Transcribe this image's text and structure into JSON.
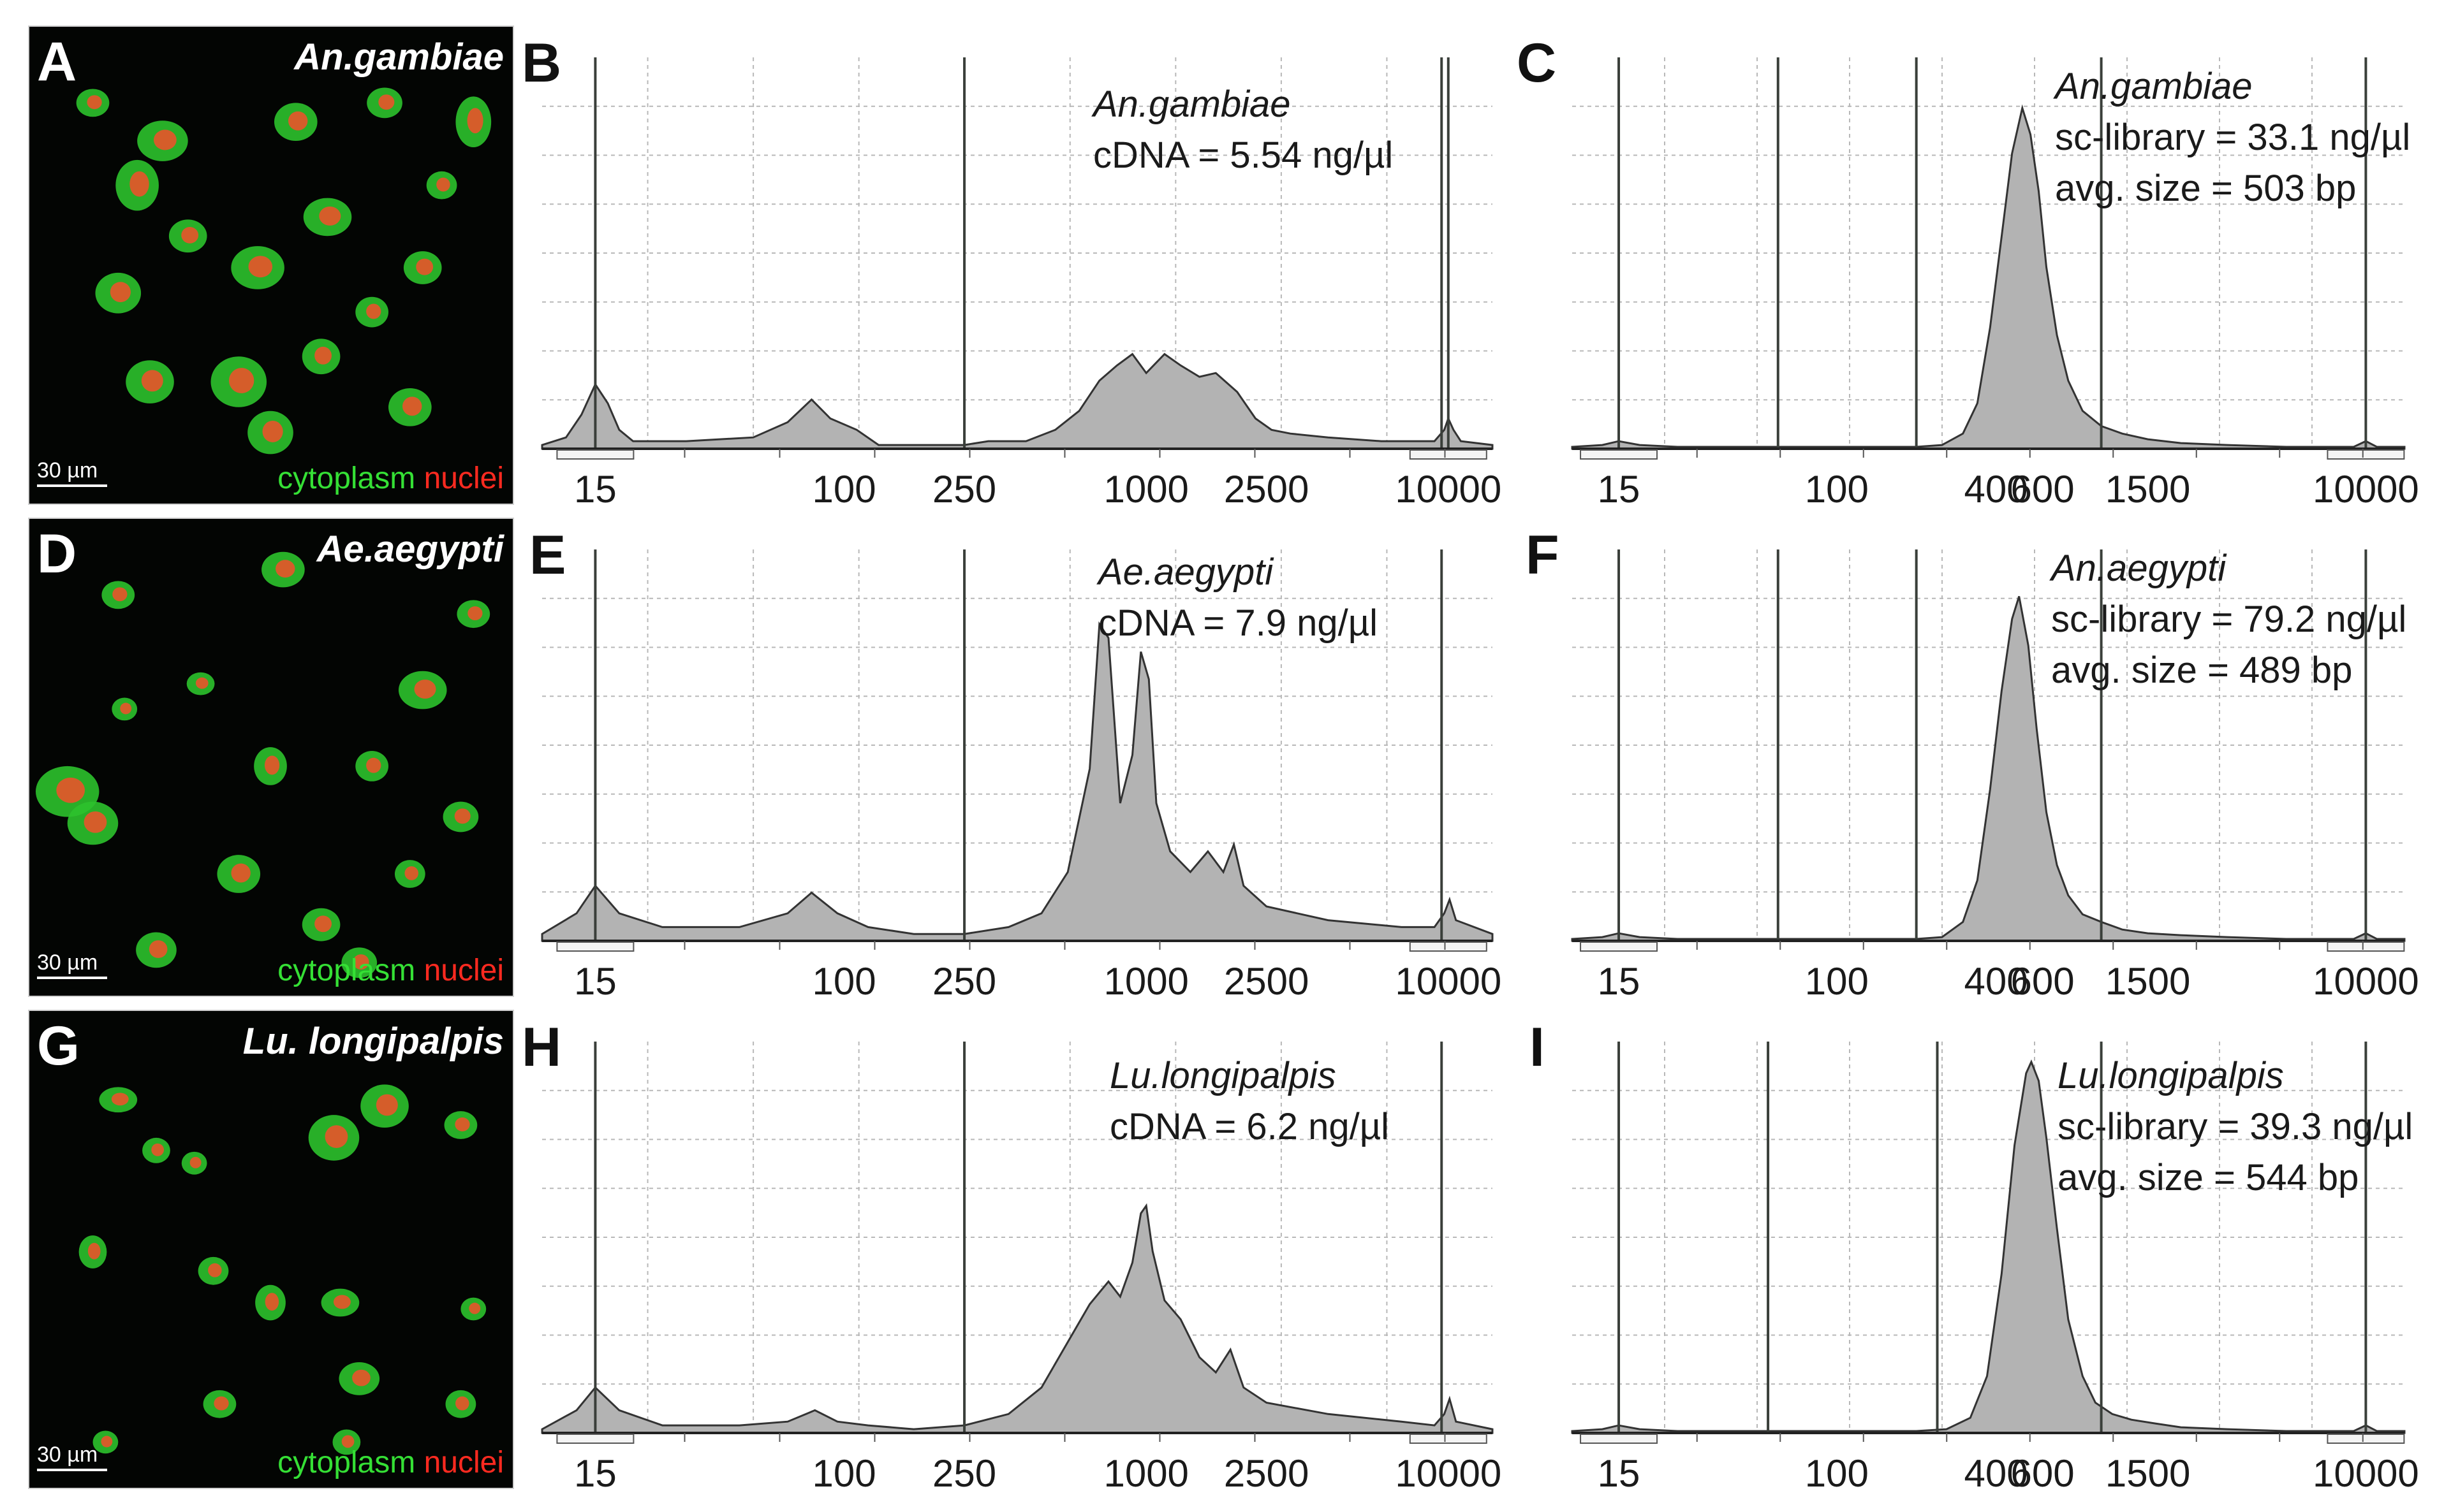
{
  "micro": [
    {
      "letter": "A",
      "species": "An.gambiae",
      "scale": "30 µm",
      "legend_cyto": "cytoplasm",
      "legend_nuc": "nuclei"
    },
    {
      "letter": "D",
      "species": "Ae.aegypti",
      "scale": "30 µm",
      "legend_cyto": "cytoplasm",
      "legend_nuc": "nuclei"
    },
    {
      "letter": "G",
      "species": "Lu. longipalpis",
      "scale": "30 µm",
      "legend_cyto": "cytoplasm",
      "legend_nuc": "nuclei"
    }
  ],
  "chart_data": [
    {
      "type": "area",
      "panel": "B",
      "title": "An.gambiae",
      "measure": "cDNA = 5.54 ng/µl",
      "xscale": "log",
      "xlim": [
        10,
        14000
      ],
      "x_ticks": [
        15,
        100,
        250,
        1000,
        2500,
        10000
      ],
      "markers": [
        15,
        250,
        9500,
        10000
      ],
      "x": [
        10,
        12,
        13.5,
        15,
        16.5,
        18,
        20,
        30,
        50,
        65,
        78,
        90,
        110,
        130,
        160,
        200,
        250,
        300,
        400,
        500,
        600,
        700,
        800,
        900,
        1000,
        1150,
        1300,
        1500,
        1700,
        2000,
        2300,
        2600,
        3000,
        4000,
        6000,
        8000,
        9000,
        9700,
        10000,
        10400,
        11000,
        14000
      ],
      "y": [
        0.01,
        0.03,
        0.09,
        0.17,
        0.12,
        0.05,
        0.02,
        0.02,
        0.03,
        0.07,
        0.13,
        0.08,
        0.05,
        0.01,
        0.01,
        0.01,
        0.01,
        0.02,
        0.02,
        0.05,
        0.1,
        0.18,
        0.22,
        0.25,
        0.2,
        0.25,
        0.22,
        0.19,
        0.2,
        0.15,
        0.08,
        0.05,
        0.04,
        0.03,
        0.02,
        0.02,
        0.02,
        0.05,
        0.08,
        0.05,
        0.02,
        0.01
      ],
      "ylim": [
        0,
        1
      ],
      "grid": true
    },
    {
      "type": "area",
      "panel": "C",
      "title": "An.gambiae",
      "measure": "sc-library =  33.1 ng/µl",
      "avg_size": "avg. size = 503 bp",
      "xscale": "log",
      "xlim": [
        10,
        14000
      ],
      "x_ticks": [
        15,
        100,
        400,
        600,
        1500,
        10000
      ],
      "markers": [
        15,
        60,
        200,
        1000,
        10000
      ],
      "x": [
        10,
        13,
        15,
        18,
        25,
        100,
        200,
        250,
        300,
        340,
        380,
        420,
        460,
        503,
        540,
        580,
        620,
        680,
        750,
        850,
        1000,
        1200,
        1500,
        2000,
        3000,
        5000,
        9000,
        10000,
        11000,
        14000
      ],
      "y": [
        0.005,
        0.01,
        0.02,
        0.01,
        0.005,
        0.005,
        0.005,
        0.01,
        0.04,
        0.12,
        0.32,
        0.56,
        0.78,
        0.9,
        0.83,
        0.68,
        0.48,
        0.3,
        0.18,
        0.1,
        0.06,
        0.04,
        0.025,
        0.015,
        0.01,
        0.005,
        0.005,
        0.02,
        0.005,
        0.005
      ],
      "ylim": [
        0,
        1
      ],
      "grid": true
    },
    {
      "type": "area",
      "panel": "E",
      "title": "Ae.aegypti",
      "measure": "cDNA = 7.9 ng/µl",
      "xscale": "log",
      "xlim": [
        10,
        14000
      ],
      "x_ticks": [
        15,
        100,
        250,
        1000,
        2500,
        10000
      ],
      "markers": [
        15,
        250,
        9500
      ],
      "x": [
        10,
        13,
        15,
        18,
        25,
        45,
        65,
        78,
        95,
        120,
        170,
        250,
        350,
        450,
        550,
        650,
        700,
        750,
        820,
        900,
        960,
        1020,
        1080,
        1200,
        1400,
        1600,
        1800,
        1950,
        2100,
        2500,
        4000,
        7000,
        9000,
        9700,
        10100,
        10600,
        14000
      ],
      "y": [
        0.01,
        0.04,
        0.08,
        0.04,
        0.02,
        0.02,
        0.04,
        0.07,
        0.04,
        0.02,
        0.01,
        0.01,
        0.02,
        0.04,
        0.1,
        0.25,
        0.46,
        0.44,
        0.2,
        0.27,
        0.42,
        0.38,
        0.2,
        0.13,
        0.1,
        0.13,
        0.1,
        0.14,
        0.08,
        0.05,
        0.03,
        0.02,
        0.02,
        0.04,
        0.06,
        0.03,
        0.01
      ],
      "ylim": [
        0,
        0.55
      ],
      "grid": true
    },
    {
      "type": "area",
      "panel": "F",
      "title": "An.aegypti",
      "measure": "sc-library =  79.2 ng/µl",
      "avg_size": "avg. size = 489 bp",
      "xscale": "log",
      "xlim": [
        10,
        14000
      ],
      "x_ticks": [
        15,
        100,
        400,
        600,
        1500,
        10000
      ],
      "markers": [
        15,
        60,
        200,
        1000,
        10000
      ],
      "x": [
        10,
        13,
        15,
        18,
        25,
        100,
        200,
        250,
        300,
        340,
        380,
        420,
        460,
        489,
        530,
        570,
        620,
        680,
        750,
        850,
        1000,
        1200,
        1500,
        2000,
        3000,
        5000,
        9000,
        10000,
        11000,
        14000
      ],
      "y": [
        0.005,
        0.01,
        0.02,
        0.01,
        0.005,
        0.005,
        0.005,
        0.01,
        0.05,
        0.16,
        0.4,
        0.66,
        0.85,
        0.91,
        0.78,
        0.56,
        0.34,
        0.2,
        0.12,
        0.07,
        0.05,
        0.03,
        0.02,
        0.015,
        0.01,
        0.005,
        0.005,
        0.02,
        0.005,
        0.005
      ],
      "ylim": [
        0,
        1
      ],
      "grid": true
    },
    {
      "type": "area",
      "panel": "H",
      "title": "Lu.longipalpis",
      "measure": "cDNA = 6.2 ng/µl",
      "xscale": "log",
      "xlim": [
        10,
        14000
      ],
      "x_ticks": [
        15,
        100,
        250,
        1000,
        2500,
        10000
      ],
      "markers": [
        15,
        250,
        9500
      ],
      "x": [
        10,
        13,
        15,
        18,
        25,
        45,
        65,
        80,
        95,
        120,
        170,
        250,
        350,
        450,
        550,
        650,
        750,
        820,
        900,
        960,
        1000,
        1050,
        1150,
        1300,
        1500,
        1700,
        1900,
        2100,
        2500,
        4000,
        7000,
        9000,
        9700,
        10100,
        10600,
        14000
      ],
      "y": [
        0.01,
        0.06,
        0.12,
        0.06,
        0.02,
        0.02,
        0.03,
        0.06,
        0.03,
        0.02,
        0.01,
        0.02,
        0.05,
        0.12,
        0.24,
        0.34,
        0.4,
        0.36,
        0.45,
        0.58,
        0.6,
        0.48,
        0.35,
        0.3,
        0.2,
        0.16,
        0.22,
        0.12,
        0.08,
        0.05,
        0.03,
        0.02,
        0.05,
        0.09,
        0.03,
        0.01
      ],
      "ylim": [
        0,
        1
      ],
      "grid": true
    },
    {
      "type": "area",
      "panel": "I",
      "title": "Lu.longipalpis",
      "measure": "sc-library =  39.3 ng/µl",
      "avg_size": "avg. size = 544 bp",
      "xscale": "log",
      "xlim": [
        10,
        14000
      ],
      "x_ticks": [
        15,
        100,
        400,
        600,
        1500,
        10000
      ],
      "markers": [
        15,
        55,
        240,
        1000,
        10000
      ],
      "x": [
        10,
        13,
        15,
        18,
        25,
        100,
        200,
        260,
        320,
        370,
        420,
        470,
        520,
        544,
        580,
        620,
        680,
        750,
        850,
        950,
        1100,
        1300,
        1600,
        2000,
        3000,
        5000,
        9000,
        10000,
        11000,
        14000
      ],
      "y": [
        0.005,
        0.01,
        0.02,
        0.01,
        0.005,
        0.005,
        0.005,
        0.01,
        0.04,
        0.15,
        0.42,
        0.76,
        0.95,
        0.98,
        0.93,
        0.78,
        0.54,
        0.3,
        0.15,
        0.08,
        0.05,
        0.035,
        0.025,
        0.015,
        0.01,
        0.005,
        0.005,
        0.02,
        0.005,
        0.005
      ],
      "ylim": [
        0,
        1
      ],
      "grid": true
    }
  ]
}
